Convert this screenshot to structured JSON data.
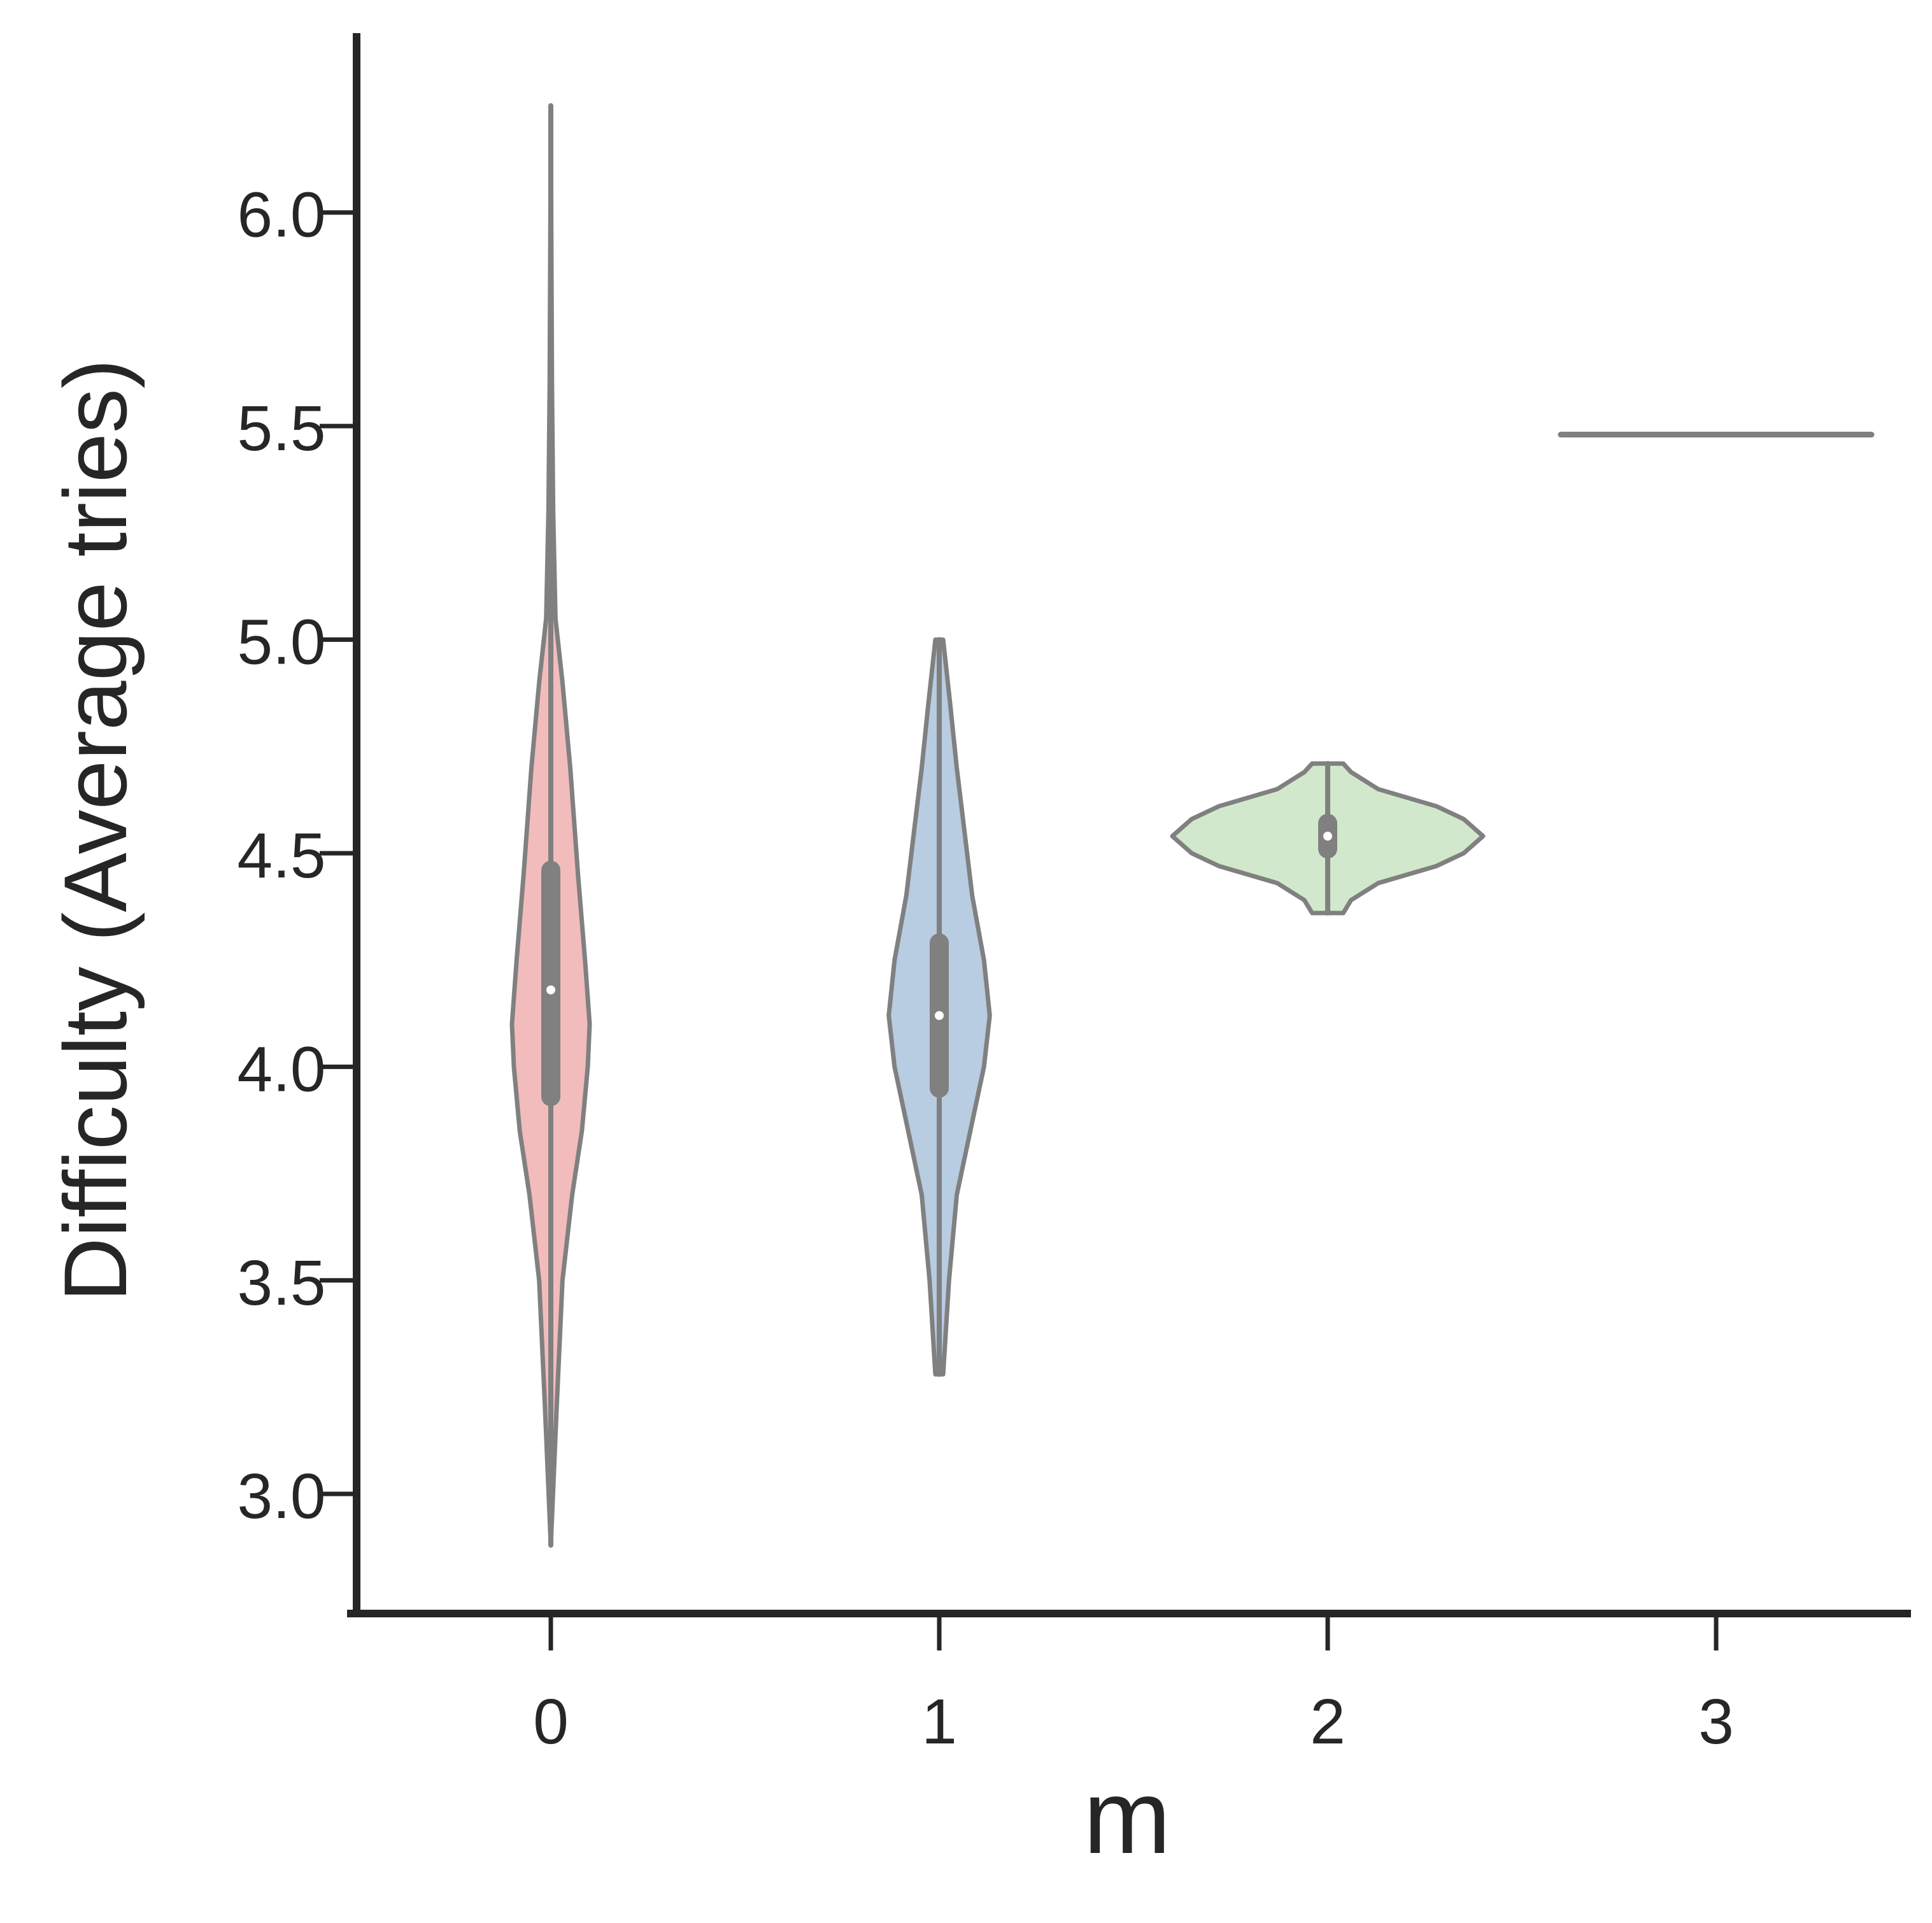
{
  "chart_data": {
    "type": "violin",
    "title": "",
    "xlabel": "m",
    "ylabel": "Difficulty (Average tries)",
    "categories": [
      "0",
      "1",
      "2",
      "3"
    ],
    "xlim": [
      -0.5,
      3.5
    ],
    "ylim": [
      2.72,
      6.42
    ],
    "yticks": [
      "3.0",
      "3.5",
      "4.0",
      "4.5",
      "5.0",
      "5.5",
      "6.0"
    ],
    "grid": false,
    "colors": {
      "axis": "#262626",
      "outline": "#808080",
      "box": "#808080",
      "median": "#ffffff"
    },
    "violins": [
      {
        "category": "0",
        "fill": "#f2bcbc",
        "min": 2.88,
        "max": 6.25,
        "q1": 3.93,
        "median": 4.18,
        "q3": 4.46,
        "profile": [
          [
            2.88,
            0.0
          ],
          [
            3.2,
            0.015
          ],
          [
            3.5,
            0.03
          ],
          [
            3.7,
            0.055
          ],
          [
            3.85,
            0.08
          ],
          [
            4.0,
            0.095
          ],
          [
            4.1,
            0.1
          ],
          [
            4.25,
            0.088
          ],
          [
            4.45,
            0.07
          ],
          [
            4.7,
            0.05
          ],
          [
            4.9,
            0.03
          ],
          [
            5.05,
            0.012
          ],
          [
            5.3,
            0.006
          ],
          [
            5.6,
            0.003
          ],
          [
            6.0,
            0.001
          ],
          [
            6.25,
            0.0
          ]
        ]
      },
      {
        "category": "1",
        "fill": "#b8cce2",
        "min": 3.28,
        "max": 5.0,
        "q1": 3.95,
        "median": 4.12,
        "q3": 4.29,
        "profile": [
          [
            3.28,
            0.01
          ],
          [
            3.5,
            0.025
          ],
          [
            3.7,
            0.045
          ],
          [
            3.85,
            0.08
          ],
          [
            4.0,
            0.115
          ],
          [
            4.12,
            0.13
          ],
          [
            4.25,
            0.115
          ],
          [
            4.4,
            0.085
          ],
          [
            4.55,
            0.065
          ],
          [
            4.7,
            0.045
          ],
          [
            4.85,
            0.028
          ],
          [
            5.0,
            0.01
          ]
        ]
      },
      {
        "category": "2",
        "fill": "#d2e8cc",
        "min": 4.36,
        "max": 4.71,
        "q1": 4.51,
        "median": 4.54,
        "q3": 4.57,
        "profile": [
          [
            4.36,
            0.04
          ],
          [
            4.39,
            0.06
          ],
          [
            4.43,
            0.13
          ],
          [
            4.47,
            0.28
          ],
          [
            4.5,
            0.35
          ],
          [
            4.54,
            0.4
          ],
          [
            4.58,
            0.35
          ],
          [
            4.61,
            0.28
          ],
          [
            4.65,
            0.13
          ],
          [
            4.69,
            0.06
          ],
          [
            4.71,
            0.04
          ]
        ]
      },
      {
        "category": "3",
        "fill": "#e5d0e8",
        "min": 5.48,
        "max": 5.48,
        "q1": 5.48,
        "median": 5.48,
        "q3": 5.48,
        "profile": [
          [
            5.48,
            0.4
          ]
        ]
      }
    ]
  }
}
